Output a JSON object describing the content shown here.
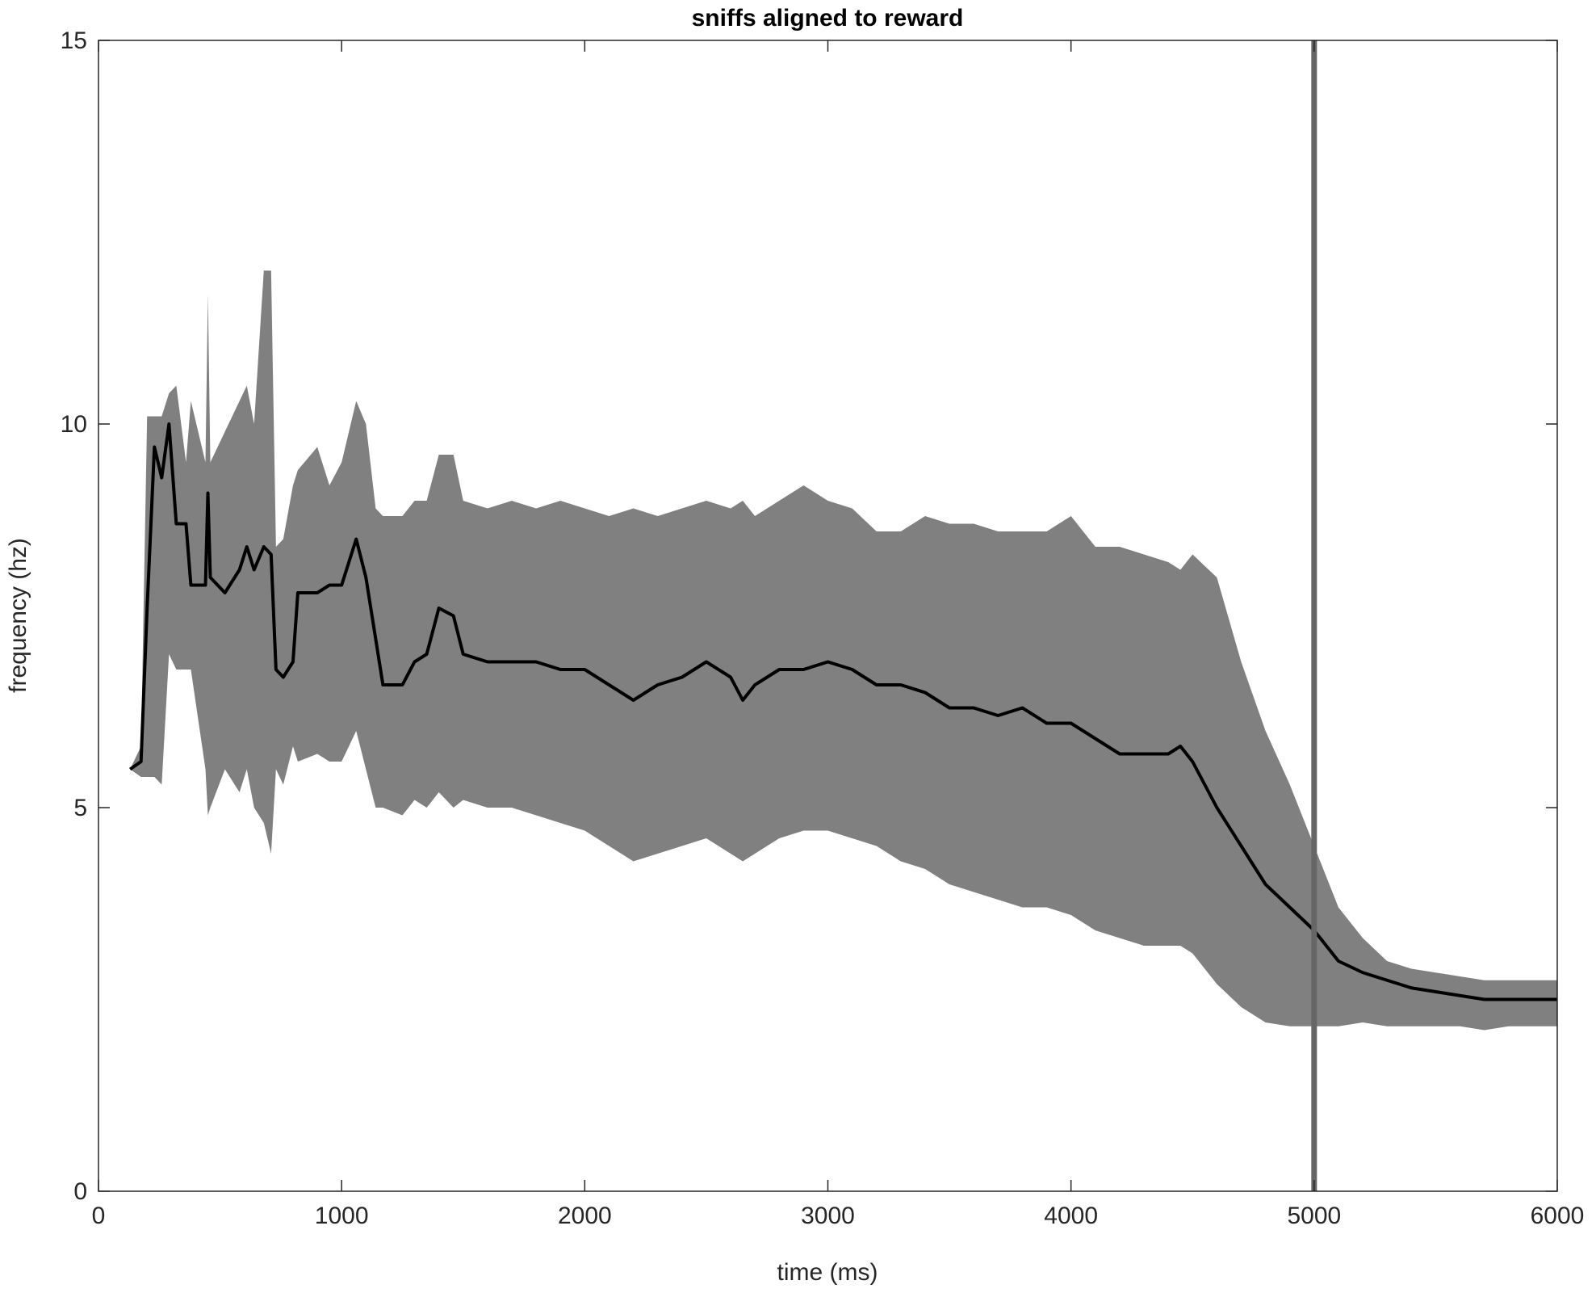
{
  "chart_data": {
    "type": "line",
    "title": "sniffs aligned to reward",
    "xlabel": "time (ms)",
    "ylabel": "frequency (hz)",
    "xlim": [
      0,
      6000
    ],
    "ylim": [
      0,
      15
    ],
    "xticks": [
      0,
      1000,
      2000,
      3000,
      4000,
      5000,
      6000
    ],
    "yticks": [
      0,
      5,
      10,
      15
    ],
    "x": [
      130,
      175,
      200,
      230,
      260,
      290,
      320,
      360,
      380,
      440,
      450,
      460,
      520,
      580,
      610,
      640,
      680,
      710,
      730,
      760,
      800,
      820,
      900,
      950,
      1000,
      1060,
      1100,
      1140,
      1170,
      1250,
      1300,
      1350,
      1400,
      1460,
      1500,
      1600,
      1700,
      1800,
      1900,
      2000,
      2100,
      2200,
      2300,
      2400,
      2500,
      2600,
      2650,
      2700,
      2800,
      2900,
      3000,
      3100,
      3200,
      3300,
      3400,
      3500,
      3600,
      3700,
      3800,
      3900,
      4000,
      4100,
      4200,
      4300,
      4400,
      4450,
      4500,
      4600,
      4700,
      4800,
      4900,
      5000,
      5100,
      5200,
      5300,
      5400,
      5500,
      5600,
      5700,
      5800,
      6000
    ],
    "series": [
      {
        "color": "#000000",
        "values": [
          5.5,
          5.6,
          7.6,
          9.7,
          9.3,
          10.0,
          8.7,
          8.7,
          7.9,
          7.9,
          9.1,
          8.0,
          7.8,
          8.1,
          8.4,
          8.1,
          8.4,
          8.3,
          6.8,
          6.7,
          6.9,
          7.8,
          7.8,
          7.9,
          7.9,
          8.5,
          8.0,
          7.2,
          6.6,
          6.6,
          6.9,
          7.0,
          7.6,
          7.5,
          7.0,
          6.9,
          6.9,
          6.9,
          6.8,
          6.8,
          6.6,
          6.4,
          6.6,
          6.7,
          6.9,
          6.7,
          6.4,
          6.6,
          6.8,
          6.8,
          6.9,
          6.8,
          6.6,
          6.6,
          6.5,
          6.3,
          6.3,
          6.2,
          6.3,
          6.1,
          6.1,
          5.9,
          5.7,
          5.7,
          5.7,
          5.8,
          5.6,
          5.0,
          4.5,
          4.0,
          3.7,
          3.4,
          3.0,
          2.85,
          2.75,
          2.65,
          2.6,
          2.55,
          2.5,
          2.5,
          2.5
        ]
      }
    ],
    "band": {
      "color": "#808080",
      "upper": [
        5.5,
        5.8,
        10.1,
        10.1,
        10.1,
        10.4,
        10.5,
        9.5,
        10.3,
        9.5,
        11.7,
        9.5,
        9.9,
        10.3,
        10.5,
        10.0,
        12.0,
        12.0,
        8.4,
        8.5,
        9.2,
        9.4,
        9.7,
        9.2,
        9.5,
        10.3,
        10.0,
        8.9,
        8.8,
        8.8,
        9.0,
        9.0,
        9.6,
        9.6,
        9.0,
        8.9,
        9.0,
        8.9,
        9.0,
        8.9,
        8.8,
        8.9,
        8.8,
        8.9,
        9.0,
        8.9,
        9.0,
        8.8,
        9.0,
        9.2,
        9.0,
        8.9,
        8.6,
        8.6,
        8.8,
        8.7,
        8.7,
        8.6,
        8.6,
        8.6,
        8.8,
        8.4,
        8.4,
        8.3,
        8.2,
        8.1,
        8.3,
        8.0,
        6.9,
        6.0,
        5.3,
        4.5,
        3.7,
        3.3,
        3.0,
        2.9,
        2.85,
        2.8,
        2.75,
        2.75,
        2.75
      ],
      "lower": [
        5.5,
        5.4,
        5.4,
        5.4,
        5.3,
        7.0,
        6.8,
        6.8,
        6.8,
        5.5,
        4.9,
        5.0,
        5.5,
        5.2,
        5.5,
        5.0,
        4.8,
        4.4,
        5.5,
        5.3,
        5.8,
        5.6,
        5.7,
        5.6,
        5.6,
        6.0,
        5.5,
        5.0,
        5.0,
        4.9,
        5.1,
        5.0,
        5.2,
        5.0,
        5.1,
        5.0,
        5.0,
        4.9,
        4.8,
        4.7,
        4.5,
        4.3,
        4.4,
        4.5,
        4.6,
        4.4,
        4.3,
        4.4,
        4.6,
        4.7,
        4.7,
        4.6,
        4.5,
        4.3,
        4.2,
        4.0,
        3.9,
        3.8,
        3.7,
        3.7,
        3.6,
        3.4,
        3.3,
        3.2,
        3.2,
        3.2,
        3.1,
        2.7,
        2.4,
        2.2,
        2.15,
        2.15,
        2.15,
        2.2,
        2.15,
        2.15,
        2.15,
        2.15,
        2.1,
        2.15,
        2.15
      ]
    },
    "vline": {
      "x": 5000,
      "color": "#666666"
    }
  }
}
